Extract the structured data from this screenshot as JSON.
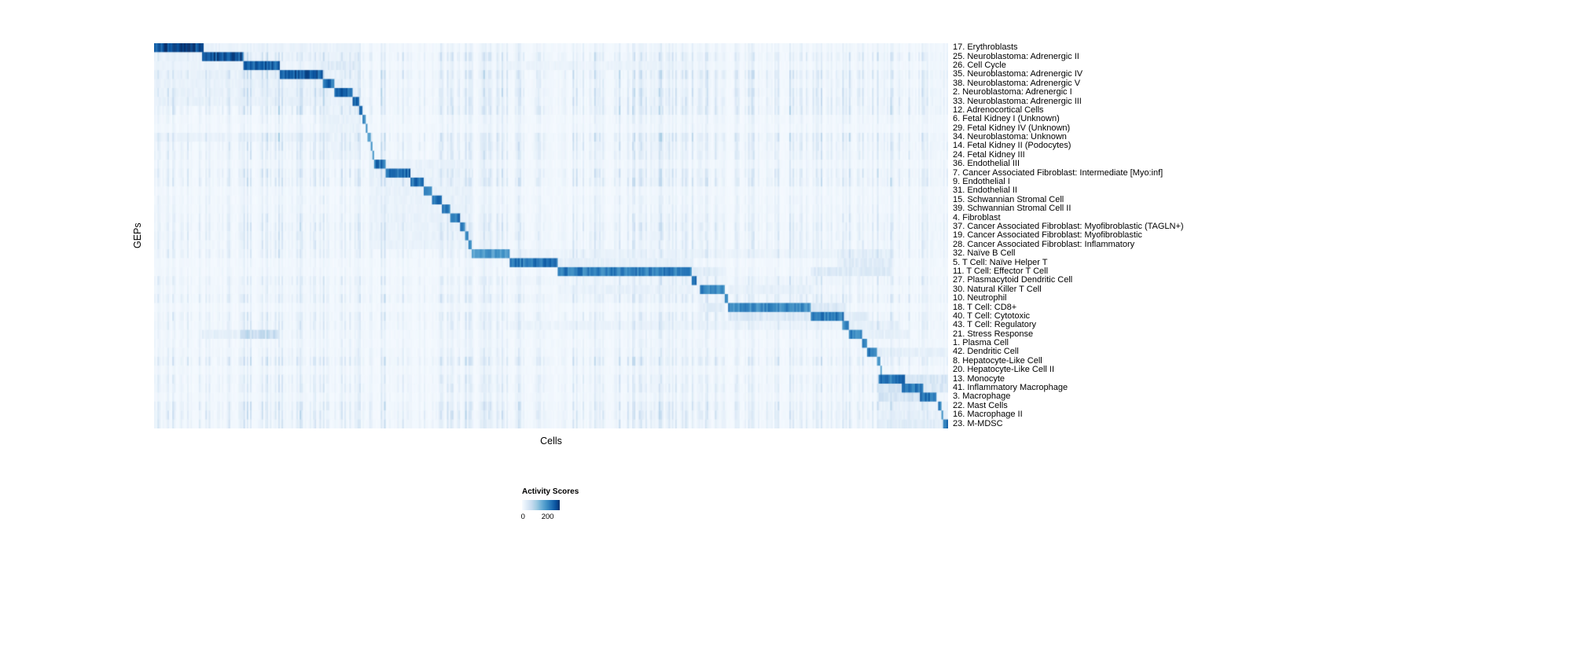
{
  "figure": {
    "background": "#ffffff",
    "text_color": "#000000"
  },
  "chart_data": {
    "type": "heatmap",
    "title": "",
    "xlabel": "Cells",
    "ylabel": "GEPs",
    "legend": {
      "title": "Activity Scores",
      "min_label": "0",
      "max_label": "200",
      "max_tick_position": 0.68
    },
    "value_range": [
      0,
      200
    ],
    "colormap": "Blues",
    "color_stops": [
      {
        "pos": 0.0,
        "color": "#f7fbff"
      },
      {
        "pos": 0.13,
        "color": "#deebf7"
      },
      {
        "pos": 0.26,
        "color": "#c6dbef"
      },
      {
        "pos": 0.39,
        "color": "#9ecae1"
      },
      {
        "pos": 0.52,
        "color": "#6baed6"
      },
      {
        "pos": 0.65,
        "color": "#4292c6"
      },
      {
        "pos": 0.78,
        "color": "#2171b5"
      },
      {
        "pos": 0.9,
        "color": "#08519c"
      },
      {
        "pos": 1.0,
        "color": "#08306b"
      }
    ],
    "approx_n_cell_columns": 480,
    "grid": false,
    "legend_position": "bottom",
    "rows": [
      {
        "label": "17. Erythroblasts",
        "block": [
          0.0,
          0.062
        ],
        "intensity": 1.0,
        "halos": [
          [
            0.0,
            0.26,
            0.09
          ]
        ]
      },
      {
        "label": "25. Neuroblastoma: Adrenergic II",
        "block": [
          0.06,
          0.112
        ],
        "intensity": 0.97,
        "halos": [
          [
            0.0,
            0.26,
            0.09
          ]
        ]
      },
      {
        "label": "26. Cell Cycle",
        "block": [
          0.112,
          0.158
        ],
        "intensity": 0.92,
        "halos": [
          [
            0.21,
            0.26,
            0.18
          ],
          [
            0.44,
            0.68,
            0.08
          ],
          [
            0.0,
            0.26,
            0.08
          ]
        ]
      },
      {
        "label": "35. Neuroblastoma: Adrenergic IV",
        "block": [
          0.158,
          0.212
        ],
        "intensity": 0.93,
        "halos": [
          [
            0.0,
            0.26,
            0.1
          ]
        ]
      },
      {
        "label": "38. Neuroblastoma: Adrenergic V",
        "block": [
          0.212,
          0.228
        ],
        "intensity": 0.88,
        "halos": [
          [
            0.0,
            0.26,
            0.1
          ]
        ]
      },
      {
        "label": "2. Neuroblastoma: Adrenergic I",
        "block": [
          0.228,
          0.25
        ],
        "intensity": 0.92,
        "halos": [
          [
            0.0,
            0.26,
            0.1
          ]
        ]
      },
      {
        "label": "33. Neuroblastoma: Adrenergic III",
        "block": [
          0.25,
          0.259
        ],
        "intensity": 0.88,
        "halos": [
          [
            0.0,
            0.26,
            0.1
          ]
        ]
      },
      {
        "label": "12. Adrenocortical Cells",
        "block": [
          0.259,
          0.263
        ],
        "intensity": 0.82,
        "halos": [
          [
            0.21,
            0.26,
            0.1
          ]
        ]
      },
      {
        "label": "6. Fetal Kidney I (Unknown)",
        "block": [
          0.263,
          0.266
        ],
        "intensity": 0.8,
        "halos": [
          [
            0.21,
            0.26,
            0.1
          ]
        ]
      },
      {
        "label": "29. Fetal Kidney IV (Unknown)",
        "block": [
          0.266,
          0.269
        ],
        "intensity": 0.76,
        "halos": [
          [
            0.21,
            0.26,
            0.1
          ]
        ]
      },
      {
        "label": "34. Neuroblastoma: Unknown",
        "block": [
          0.269,
          0.272
        ],
        "intensity": 0.72,
        "halos": [
          [
            0.0,
            0.26,
            0.08
          ]
        ]
      },
      {
        "label": "14. Fetal Kidney II (Podocytes)",
        "block": [
          0.272,
          0.275
        ],
        "intensity": 0.75,
        "halos": [
          [
            0.21,
            0.26,
            0.08
          ]
        ]
      },
      {
        "label": "24. Fetal Kidney III",
        "block": [
          0.275,
          0.278
        ],
        "intensity": 0.72,
        "halos": [
          [
            0.21,
            0.26,
            0.08
          ]
        ]
      },
      {
        "label": "36. Endothelial III",
        "block": [
          0.278,
          0.291
        ],
        "intensity": 0.86,
        "halos": [
          [
            0.27,
            0.4,
            0.1
          ]
        ]
      },
      {
        "label": "7. Cancer Associated Fibroblast: Intermediate [Myo:inf]",
        "block": [
          0.291,
          0.323
        ],
        "intensity": 0.9,
        "halos": [
          [
            0.27,
            0.4,
            0.1
          ]
        ]
      },
      {
        "label": "9. Endothelial I",
        "block": [
          0.323,
          0.339
        ],
        "intensity": 0.87,
        "halos": [
          [
            0.27,
            0.4,
            0.1
          ]
        ]
      },
      {
        "label": "31. Endothelial II",
        "block": [
          0.339,
          0.351
        ],
        "intensity": 0.85,
        "halos": [
          [
            0.27,
            0.4,
            0.1
          ]
        ]
      },
      {
        "label": "15. Schwannian Stromal Cell",
        "block": [
          0.351,
          0.363
        ],
        "intensity": 0.85,
        "halos": [
          [
            0.27,
            0.4,
            0.09
          ]
        ]
      },
      {
        "label": "39. Schwannian Stromal Cell II",
        "block": [
          0.363,
          0.373
        ],
        "intensity": 0.8,
        "halos": [
          [
            0.27,
            0.4,
            0.09
          ]
        ]
      },
      {
        "label": "4. Fibroblast",
        "block": [
          0.373,
          0.385
        ],
        "intensity": 0.85,
        "halos": [
          [
            0.27,
            0.4,
            0.1
          ]
        ]
      },
      {
        "label": "37. Cancer Associated Fibroblast: Myofibroblastic (TAGLN+)",
        "block": [
          0.385,
          0.391
        ],
        "intensity": 0.8,
        "halos": [
          [
            0.27,
            0.4,
            0.09
          ]
        ]
      },
      {
        "label": "19. Cancer Associated Fibroblast: Myofibroblastic",
        "block": [
          0.391,
          0.396
        ],
        "intensity": 0.8,
        "halos": [
          [
            0.27,
            0.4,
            0.09
          ]
        ]
      },
      {
        "label": "28. Cancer Associated Fibroblast: Inflammatory",
        "block": [
          0.396,
          0.401
        ],
        "intensity": 0.76,
        "halos": [
          [
            0.27,
            0.4,
            0.09
          ]
        ]
      },
      {
        "label": "32. Naïve B Cell",
        "block": [
          0.401,
          0.447
        ],
        "intensity": 0.68,
        "halos": [
          [
            0.447,
            0.88,
            0.08
          ],
          [
            0.86,
            0.93,
            0.14
          ]
        ]
      },
      {
        "label": "5. T Cell: Naïve Helper T",
        "block": [
          0.447,
          0.508
        ],
        "intensity": 0.85,
        "halos": [
          [
            0.508,
            0.68,
            0.12
          ],
          [
            0.86,
            0.93,
            0.16
          ]
        ]
      },
      {
        "label": "11. T Cell: Effector T Cell",
        "block": [
          0.508,
          0.678
        ],
        "intensity": 0.8,
        "halos": [
          [
            0.678,
            0.72,
            0.15
          ],
          [
            0.828,
            0.93,
            0.18
          ]
        ]
      },
      {
        "label": "27. Plasmacytoid Dendritic Cell",
        "block": [
          0.678,
          0.684
        ],
        "intensity": 0.9,
        "halos": [
          [
            0.447,
            0.88,
            0.06
          ]
        ]
      },
      {
        "label": "30. Natural Killer T Cell",
        "block": [
          0.688,
          0.718
        ],
        "intensity": 0.76,
        "halos": [
          [
            0.508,
            0.678,
            0.1
          ],
          [
            0.722,
            0.83,
            0.12
          ]
        ]
      },
      {
        "label": "10. Neutrophil",
        "block": [
          0.718,
          0.722
        ],
        "intensity": 0.72,
        "halos": [
          [
            0.447,
            0.88,
            0.05
          ]
        ]
      },
      {
        "label": "18. T Cell: CD8+",
        "block": [
          0.722,
          0.828
        ],
        "intensity": 0.75,
        "halos": [
          [
            0.828,
            0.87,
            0.2
          ],
          [
            0.688,
            0.718,
            0.15
          ]
        ]
      },
      {
        "label": "40. T Cell: Cytotoxic",
        "block": [
          0.828,
          0.868
        ],
        "intensity": 0.82,
        "halos": [
          [
            0.722,
            0.828,
            0.2
          ],
          [
            0.868,
            0.9,
            0.15
          ]
        ]
      },
      {
        "label": "43. T Cell: Regulatory",
        "block": [
          0.866,
          0.876
        ],
        "intensity": 0.76,
        "halos": [
          [
            0.447,
            0.88,
            0.08
          ],
          [
            0.876,
            0.94,
            0.12
          ]
        ]
      },
      {
        "label": "21. Stress Response",
        "block": [
          0.876,
          0.891
        ],
        "intensity": 0.8,
        "halos": [
          [
            0.108,
            0.158,
            0.32
          ],
          [
            0.06,
            0.108,
            0.12
          ],
          [
            0.89,
            0.95,
            0.12
          ]
        ]
      },
      {
        "label": "1. Plasma Cell",
        "block": [
          0.891,
          0.897
        ],
        "intensity": 0.8,
        "halos": []
      },
      {
        "label": "42. Dendritic Cell",
        "block": [
          0.897,
          0.911
        ],
        "intensity": 0.8,
        "halos": [
          [
            0.91,
            1.0,
            0.12
          ]
        ]
      },
      {
        "label": "8. Hepatocyte-Like Cell",
        "block": [
          0.911,
          0.914
        ],
        "intensity": 0.72,
        "halos": []
      },
      {
        "label": "20. Hepatocyte-Like Cell II",
        "block": [
          0.914,
          0.917
        ],
        "intensity": 0.7,
        "halos": []
      },
      {
        "label": "13. Monocyte",
        "block": [
          0.913,
          0.946
        ],
        "intensity": 0.85,
        "halos": [
          [
            0.946,
            1.0,
            0.22
          ],
          [
            0.91,
            1.0,
            0.12
          ]
        ]
      },
      {
        "label": "41. Inflammatory Macrophage",
        "block": [
          0.941,
          0.969
        ],
        "intensity": 0.85,
        "halos": [
          [
            0.913,
            0.941,
            0.25
          ],
          [
            0.969,
            1.0,
            0.2
          ]
        ]
      },
      {
        "label": "3. Macrophage",
        "block": [
          0.964,
          0.986
        ],
        "intensity": 0.85,
        "halos": [
          [
            0.913,
            0.964,
            0.25
          ]
        ]
      },
      {
        "label": "22. Mast Cells",
        "block": [
          0.988,
          0.991
        ],
        "intensity": 0.8,
        "halos": [
          [
            0.91,
            1.0,
            0.1
          ]
        ]
      },
      {
        "label": "16. Macrophage II",
        "block": [
          0.991,
          0.994
        ],
        "intensity": 0.76,
        "halos": [
          [
            0.91,
            1.0,
            0.12
          ]
        ]
      },
      {
        "label": "23. M-MDSC",
        "block": [
          0.994,
          1.0
        ],
        "intensity": 0.9,
        "halos": [
          [
            0.91,
            0.994,
            0.15
          ]
        ]
      }
    ]
  }
}
